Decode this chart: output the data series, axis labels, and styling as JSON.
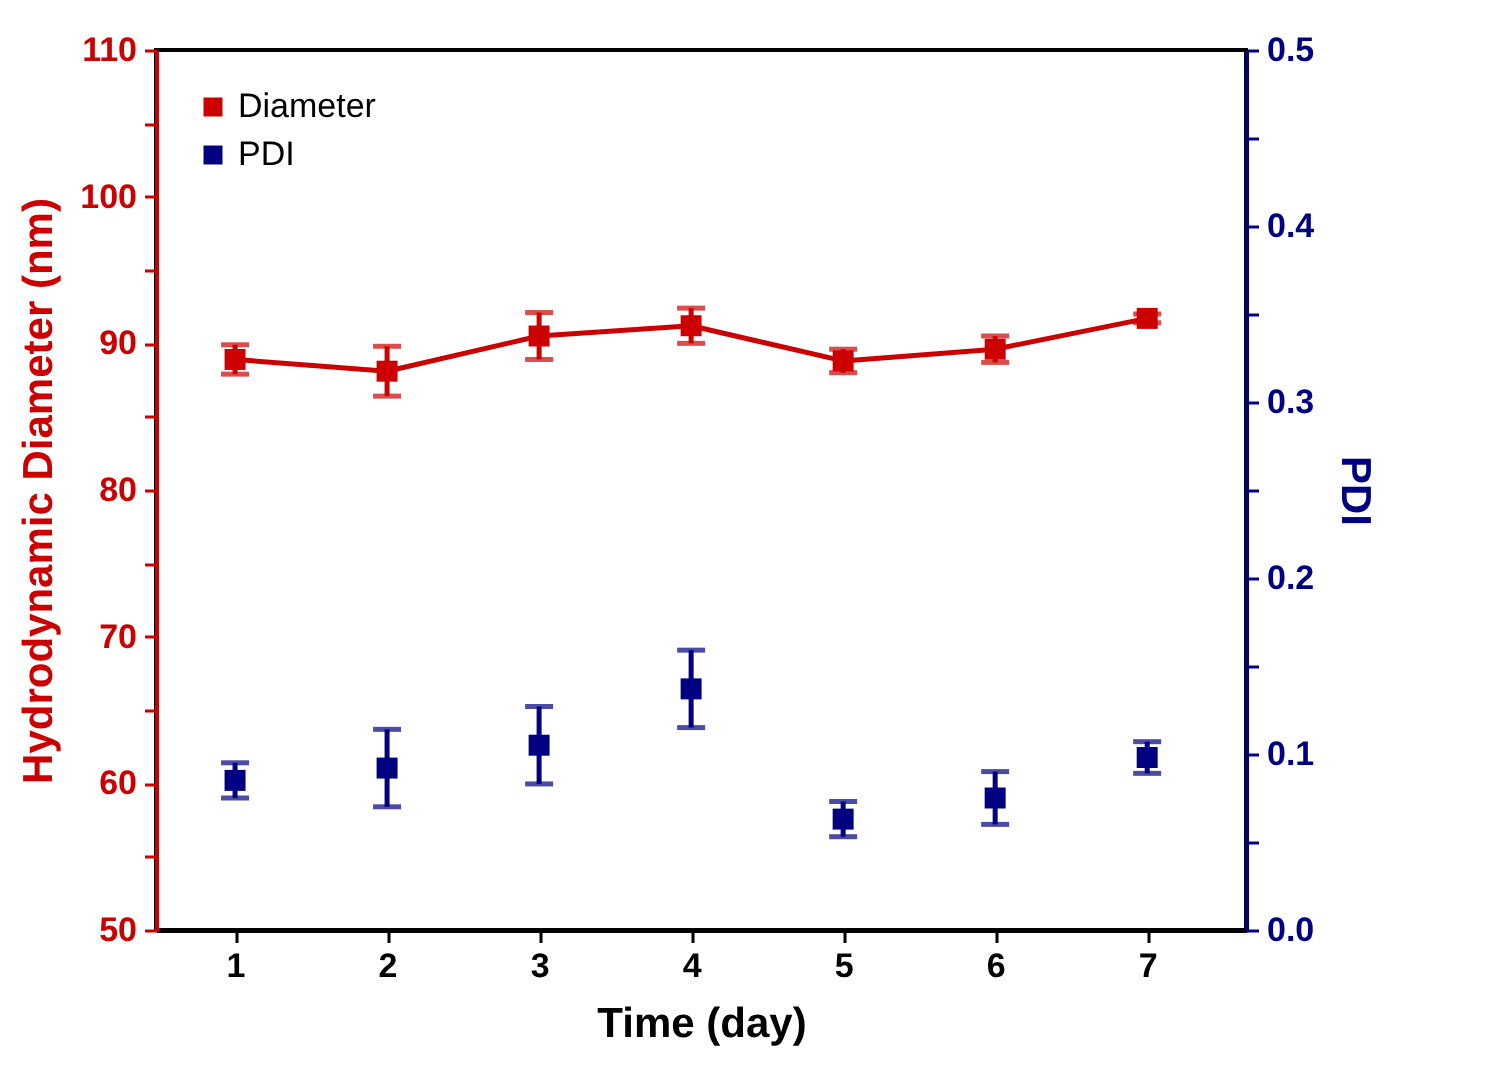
{
  "chart_data": {
    "type": "line",
    "xlabel": "Time (day)",
    "ylabel": "Hydrodynamic Diameter (nm)",
    "y2label": "PDI",
    "x": [
      1,
      2,
      3,
      4,
      5,
      6,
      7
    ],
    "xlim": [
      0.48,
      7.65
    ],
    "xticks": [
      1,
      2,
      3,
      4,
      5,
      6,
      7
    ],
    "ylim": [
      50,
      110
    ],
    "yticks": [
      50,
      {
        "value": 55,
        "label": null
      },
      60,
      {
        "value": 65,
        "label": null
      },
      70,
      {
        "value": 75,
        "label": null
      },
      80,
      {
        "value": 85,
        "label": null
      },
      90,
      {
        "value": 95,
        "label": null
      },
      100,
      {
        "value": 105,
        "label": null
      },
      110
    ],
    "y2lim": [
      0,
      0.5
    ],
    "y2ticks": [
      {
        "value": 0,
        "label": "0.0"
      },
      {
        "value": 0.05,
        "label": null
      },
      0.1,
      {
        "value": 0.15,
        "label": null
      },
      0.2,
      {
        "value": 0.25,
        "label": null
      },
      0.3,
      {
        "value": 0.35,
        "label": null
      },
      0.4,
      {
        "value": 0.45,
        "label": null
      },
      0.5
    ],
    "legend": "top left",
    "marker": "square",
    "series": [
      {
        "name": "Diameter",
        "color": "#cc0000",
        "values": [
          88.9,
          88.1,
          90.5,
          91.2,
          88.8,
          89.6,
          91.7
        ],
        "errors": [
          1.0,
          1.7,
          1.6,
          1.2,
          0.8,
          0.9,
          0.3
        ]
      },
      {
        "name": "PDI",
        "type": "scatter",
        "axis": "y2",
        "color": "#000080",
        "values": [
          0.085,
          0.092,
          0.105,
          0.137,
          0.063,
          0.075,
          0.098
        ],
        "errors": [
          0.01,
          0.022,
          0.022,
          0.022,
          0.01,
          0.015,
          0.009
        ]
      }
    ]
  }
}
